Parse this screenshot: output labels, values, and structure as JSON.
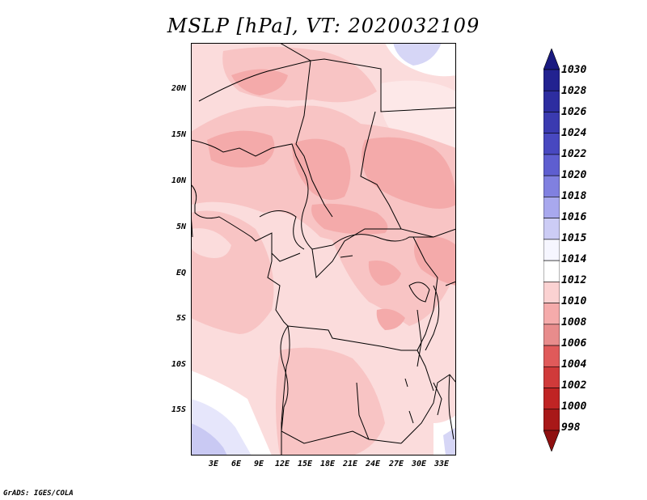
{
  "title": "MSLP [hPa], VT: 2020032109",
  "footer": "GrADS: IGES/COLA",
  "y_axis_labels": [
    "20N",
    "15N",
    "10N",
    "5N",
    "EQ",
    "5S",
    "10S",
    "15S"
  ],
  "x_axis_labels": [
    "3E",
    "6E",
    "9E",
    "12E",
    "15E",
    "18E",
    "21E",
    "24E",
    "27E",
    "30E",
    "33E"
  ],
  "colorbar": {
    "levels": [
      "1030",
      "1028",
      "1026",
      "1024",
      "1022",
      "1020",
      "1018",
      "1016",
      "1015",
      "1014",
      "1012",
      "1010",
      "1008",
      "1006",
      "1004",
      "1002",
      "1000",
      "998"
    ],
    "colors": [
      "#1a1a80",
      "#222290",
      "#2d2da0",
      "#3a3ab0",
      "#4848c0",
      "#5e5ed0",
      "#8080e0",
      "#a8a8ee",
      "#ccccf5",
      "#f6f6ff",
      "#ffffff",
      "#fbd2d2",
      "#f5abab",
      "#e88c8c",
      "#e05a5a",
      "#d03a3a",
      "#c02424",
      "#a81818",
      "#8f1010"
    ]
  },
  "colors": {
    "p1014": "#ffffff",
    "p1012": "#fbdcdc",
    "p1010": "#f8c4c4",
    "p1008": "#f4aaaa",
    "p1015": "#e6e6fb",
    "p1016": "#c9c9f3"
  }
}
